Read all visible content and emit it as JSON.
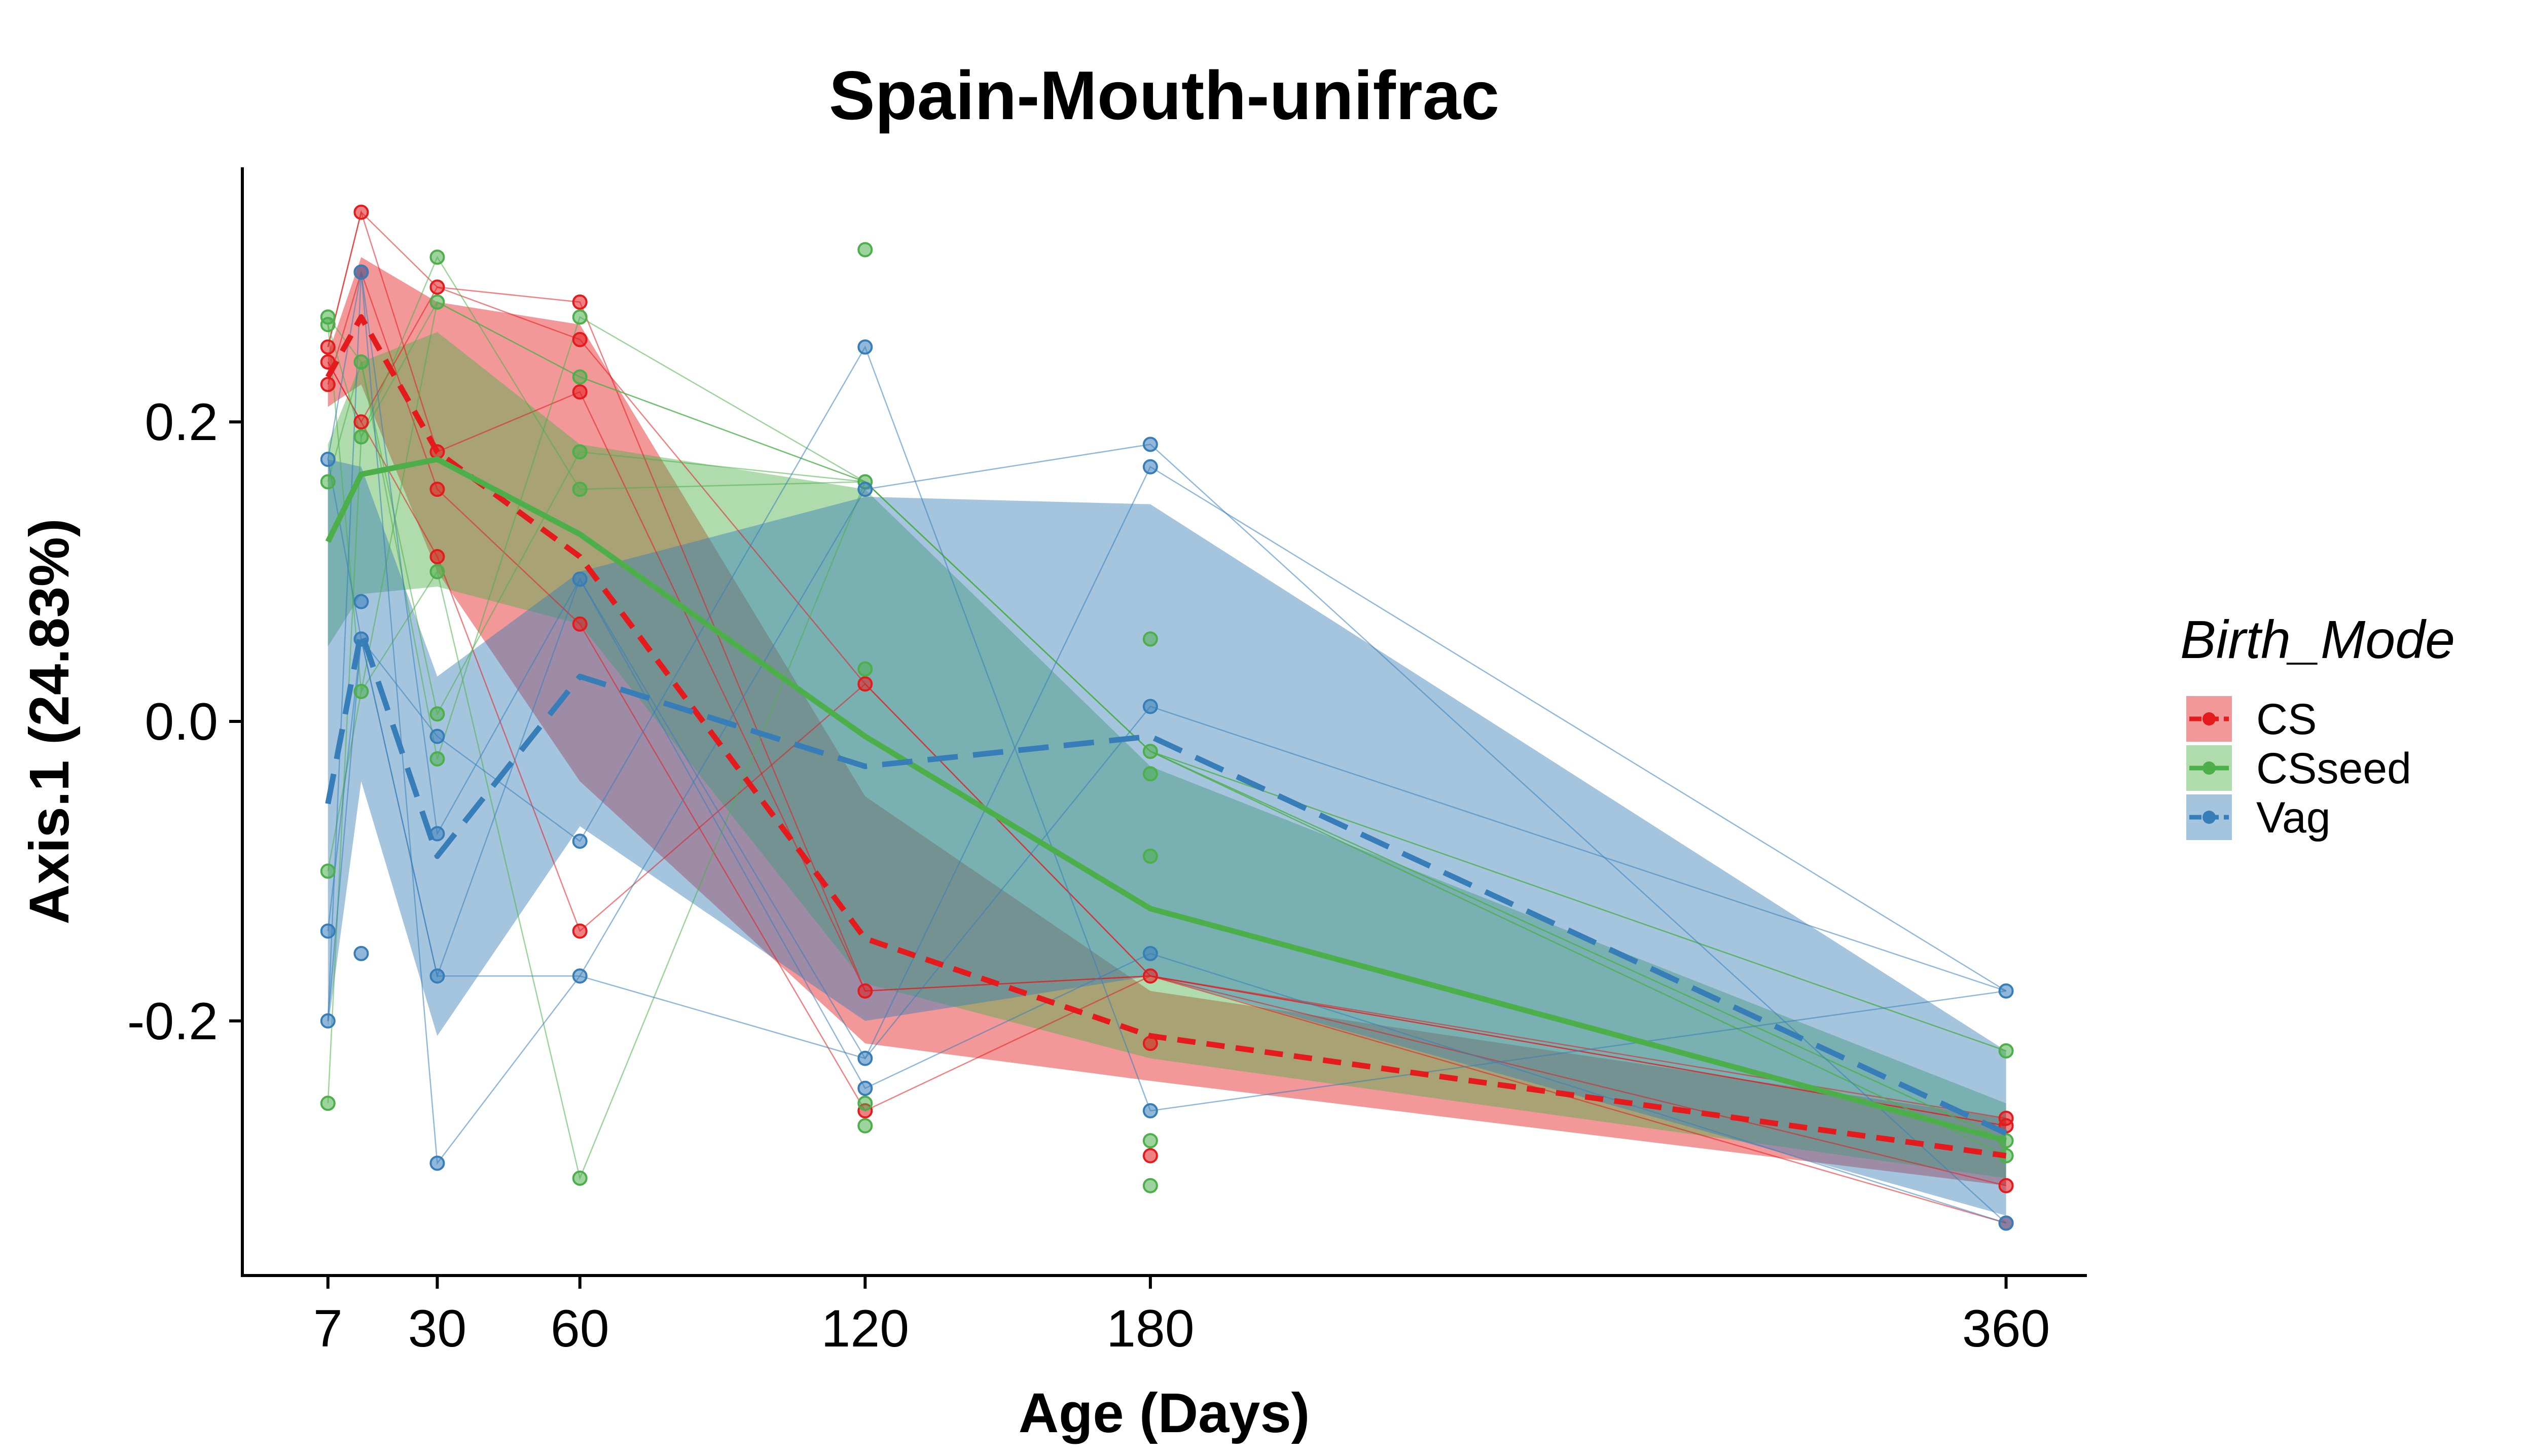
{
  "chart_data": {
    "type": "line",
    "title": "Spain-Mouth-unifrac",
    "xlabel": "Age (Days)",
    "ylabel": "Axis.1 (24.83%)",
    "x_ticks": [
      7,
      30,
      60,
      120,
      180,
      360
    ],
    "x_tick_labels": [
      "7",
      "30",
      "60",
      "120",
      "180",
      "360"
    ],
    "y_ticks": [
      -0.2,
      0.0,
      0.2
    ],
    "y_tick_labels": [
      "-0.2",
      "0.0",
      "0.2"
    ],
    "xlim": [
      -11,
      377
    ],
    "ylim": [
      -0.37,
      0.37
    ],
    "grid": false,
    "legend": {
      "title": "Birth_Mode",
      "position": "right"
    },
    "series": [
      {
        "name": "CS",
        "color": "#E41A1C",
        "line_style": "dashed",
        "mean": [
          [
            7,
            0.23
          ],
          [
            14,
            0.27
          ],
          [
            30,
            0.18
          ],
          [
            60,
            0.11
          ],
          [
            120,
            -0.145
          ],
          [
            180,
            -0.21
          ],
          [
            360,
            -0.29
          ]
        ],
        "band_upper": [
          [
            7,
            0.245
          ],
          [
            14,
            0.31
          ],
          [
            30,
            0.28
          ],
          [
            60,
            0.265
          ],
          [
            120,
            -0.05
          ],
          [
            180,
            -0.18
          ],
          [
            360,
            -0.265
          ]
        ],
        "band_lower": [
          [
            7,
            0.21
          ],
          [
            14,
            0.225
          ],
          [
            30,
            0.1
          ],
          [
            60,
            -0.04
          ],
          [
            120,
            -0.215
          ],
          [
            180,
            -0.24
          ],
          [
            360,
            -0.31
          ]
        ],
        "points": [
          [
            7,
            0.25
          ],
          [
            7,
            0.24
          ],
          [
            7,
            0.225
          ],
          [
            14,
            0.34
          ],
          [
            14,
            0.3
          ],
          [
            14,
            0.2
          ],
          [
            30,
            0.29
          ],
          [
            30,
            0.18
          ],
          [
            30,
            0.155
          ],
          [
            30,
            0.11
          ],
          [
            60,
            0.28
          ],
          [
            60,
            0.255
          ],
          [
            60,
            0.22
          ],
          [
            60,
            0.065
          ],
          [
            60,
            -0.14
          ],
          [
            120,
            -0.18
          ],
          [
            120,
            -0.26
          ],
          [
            120,
            0.025
          ],
          [
            180,
            -0.17
          ],
          [
            180,
            -0.215
          ],
          [
            180,
            -0.29
          ],
          [
            360,
            -0.27
          ],
          [
            360,
            -0.31
          ],
          [
            360,
            -0.335
          ],
          [
            360,
            -0.265
          ]
        ]
      },
      {
        "name": "CSseed",
        "color": "#4DAF4A",
        "line_style": "solid",
        "mean": [
          [
            7,
            0.12
          ],
          [
            14,
            0.165
          ],
          [
            30,
            0.175
          ],
          [
            60,
            0.125
          ],
          [
            120,
            -0.01
          ],
          [
            180,
            -0.125
          ],
          [
            360,
            -0.28
          ]
        ],
        "band_upper": [
          [
            7,
            0.185
          ],
          [
            14,
            0.24
          ],
          [
            30,
            0.26
          ],
          [
            60,
            0.185
          ],
          [
            120,
            0.155
          ],
          [
            180,
            -0.03
          ],
          [
            360,
            -0.255
          ]
        ],
        "band_lower": [
          [
            7,
            0.05
          ],
          [
            14,
            0.085
          ],
          [
            30,
            0.09
          ],
          [
            60,
            0.065
          ],
          [
            120,
            -0.175
          ],
          [
            180,
            -0.225
          ],
          [
            360,
            -0.305
          ]
        ],
        "points": [
          [
            7,
            0.27
          ],
          [
            7,
            0.265
          ],
          [
            7,
            0.16
          ],
          [
            7,
            -0.1
          ],
          [
            7,
            -0.255
          ],
          [
            14,
            0.24
          ],
          [
            14,
            0.19
          ],
          [
            14,
            0.02
          ],
          [
            30,
            0.31
          ],
          [
            30,
            0.28
          ],
          [
            30,
            0.1
          ],
          [
            30,
            0.005
          ],
          [
            30,
            -0.025
          ],
          [
            60,
            0.27
          ],
          [
            60,
            0.23
          ],
          [
            60,
            0.18
          ],
          [
            60,
            0.155
          ],
          [
            60,
            -0.305
          ],
          [
            120,
            0.315
          ],
          [
            120,
            0.16
          ],
          [
            120,
            0.035
          ],
          [
            120,
            -0.255
          ],
          [
            120,
            -0.27
          ],
          [
            180,
            0.055
          ],
          [
            180,
            -0.02
          ],
          [
            180,
            -0.035
          ],
          [
            180,
            -0.09
          ],
          [
            180,
            -0.28
          ],
          [
            180,
            -0.31
          ],
          [
            360,
            -0.22
          ],
          [
            360,
            -0.28
          ],
          [
            360,
            -0.29
          ]
        ]
      },
      {
        "name": "Vag",
        "color": "#377EB8",
        "line_style": "dashed",
        "mean": [
          [
            7,
            -0.055
          ],
          [
            14,
            0.06
          ],
          [
            30,
            -0.09
          ],
          [
            60,
            0.03
          ],
          [
            120,
            -0.03
          ],
          [
            180,
            -0.01
          ],
          [
            360,
            -0.275
          ]
        ],
        "band_upper": [
          [
            7,
            0.175
          ],
          [
            14,
            0.17
          ],
          [
            30,
            0.03
          ],
          [
            60,
            0.1
          ],
          [
            120,
            0.15
          ],
          [
            180,
            0.145
          ],
          [
            360,
            -0.22
          ]
        ],
        "band_lower": [
          [
            7,
            -0.205
          ],
          [
            14,
            -0.04
          ],
          [
            30,
            -0.21
          ],
          [
            60,
            -0.07
          ],
          [
            120,
            -0.2
          ],
          [
            180,
            -0.17
          ],
          [
            360,
            -0.33
          ]
        ],
        "points": [
          [
            7,
            0.175
          ],
          [
            7,
            -0.14
          ],
          [
            7,
            -0.2
          ],
          [
            14,
            0.3
          ],
          [
            14,
            0.08
          ],
          [
            14,
            0.055
          ],
          [
            14,
            -0.155
          ],
          [
            30,
            -0.01
          ],
          [
            30,
            -0.075
          ],
          [
            30,
            -0.17
          ],
          [
            30,
            -0.295
          ],
          [
            60,
            0.095
          ],
          [
            60,
            -0.08
          ],
          [
            60,
            -0.17
          ],
          [
            120,
            0.25
          ],
          [
            120,
            0.155
          ],
          [
            120,
            -0.225
          ],
          [
            120,
            -0.245
          ],
          [
            180,
            0.185
          ],
          [
            180,
            0.17
          ],
          [
            180,
            0.01
          ],
          [
            180,
            -0.155
          ],
          [
            180,
            -0.26
          ],
          [
            360,
            -0.18
          ],
          [
            360,
            -0.335
          ]
        ]
      }
    ]
  }
}
